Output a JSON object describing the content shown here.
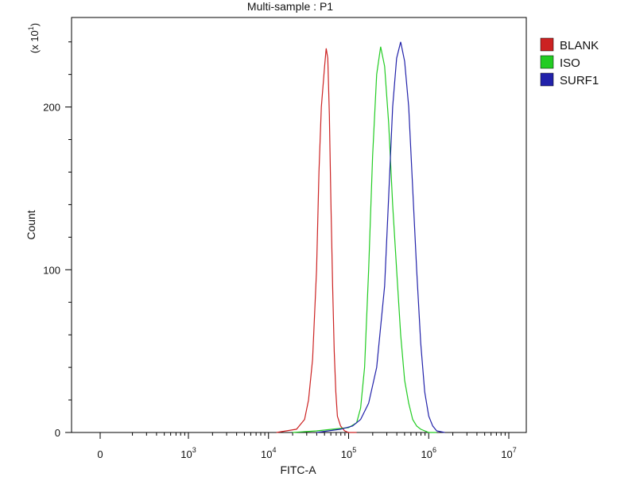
{
  "chart_data": {
    "type": "line",
    "title": "Multi-sample : P1",
    "xlabel": "FITC-A",
    "ylabel": "Count",
    "y_multiplier": {
      "base": "(x 10",
      "exp": "1",
      "close": ")"
    },
    "x_scale": "log (with 0 tick)",
    "x_ticks": [
      {
        "label": "0",
        "value": 0
      },
      {
        "label": "10",
        "exp": "3",
        "value": 1000
      },
      {
        "label": "10",
        "exp": "4",
        "value": 10000
      },
      {
        "label": "10",
        "exp": "5",
        "value": 100000
      },
      {
        "label": "10",
        "exp": "6",
        "value": 1000000
      },
      {
        "label": "10",
        "exp": "7",
        "value": 10000000
      }
    ],
    "y_ticks": [
      {
        "label": "0",
        "value": 0
      },
      {
        "label": "100",
        "value": 100
      },
      {
        "label": "200",
        "value": 200
      }
    ],
    "ylim": [
      0,
      255
    ],
    "legend_position": "top-right",
    "series": [
      {
        "name": "BLANK",
        "color": "#cc2222",
        "x_log10": [
          4.1,
          4.35,
          4.45,
          4.5,
          4.55,
          4.6,
          4.63,
          4.66,
          4.7,
          4.72,
          4.74,
          4.76,
          4.78,
          4.8,
          4.82,
          4.84,
          4.86,
          4.9,
          4.95,
          5.0,
          5.1
        ],
        "y": [
          0,
          2,
          8,
          20,
          45,
          100,
          160,
          200,
          225,
          236,
          230,
          195,
          140,
          90,
          50,
          25,
          10,
          4,
          1,
          0,
          0
        ]
      },
      {
        "name": "ISO",
        "color": "#22cc22",
        "x_log10": [
          4.3,
          4.6,
          4.8,
          5.0,
          5.1,
          5.15,
          5.2,
          5.25,
          5.3,
          5.35,
          5.4,
          5.45,
          5.5,
          5.55,
          5.6,
          5.65,
          5.7,
          5.75,
          5.8,
          5.85,
          5.9,
          6.0,
          6.1
        ],
        "y": [
          0,
          1,
          2,
          3,
          6,
          15,
          40,
          100,
          170,
          220,
          237,
          225,
          190,
          140,
          100,
          60,
          32,
          18,
          8,
          4,
          2,
          0,
          0
        ]
      },
      {
        "name": "SURF1",
        "color": "#2222aa",
        "x_log10": [
          4.6,
          4.9,
          5.05,
          5.15,
          5.25,
          5.35,
          5.45,
          5.5,
          5.55,
          5.6,
          5.65,
          5.7,
          5.75,
          5.8,
          5.85,
          5.9,
          5.95,
          6.0,
          6.05,
          6.1,
          6.2
        ],
        "y": [
          0,
          2,
          4,
          8,
          18,
          40,
          90,
          145,
          200,
          230,
          240,
          228,
          200,
          150,
          100,
          55,
          25,
          10,
          4,
          1,
          0
        ]
      }
    ]
  }
}
